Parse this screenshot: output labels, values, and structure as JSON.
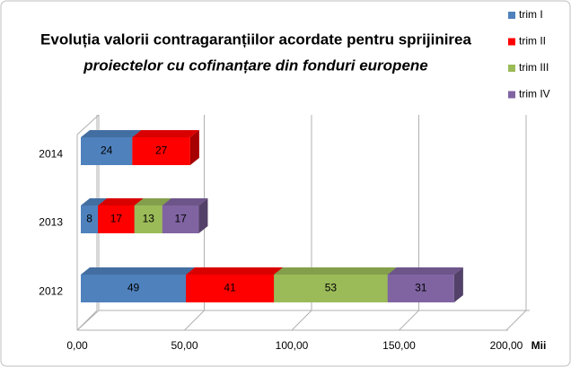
{
  "chart_data": {
    "type": "bar3d_stacked_horizontal",
    "title": "Evoluția valorii contragaranțiilor acordate pentru sprijinirea",
    "subtitle": "proiectelor cu cofinanțare din fonduri europene",
    "categories": [
      "2014",
      "2013",
      "2012"
    ],
    "series": [
      {
        "name": "trim I",
        "color": "#4f81bd",
        "values": [
          24,
          8,
          49
        ]
      },
      {
        "name": "trim II",
        "color": "#ff0000",
        "values": [
          27,
          17,
          41
        ]
      },
      {
        "name": "trim III",
        "color": "#9bbb59",
        "values": [
          null,
          13,
          53
        ]
      },
      {
        "name": "trim IV",
        "color": "#8064a2",
        "values": [
          null,
          17,
          31
        ]
      }
    ],
    "xlim": [
      0,
      200
    ],
    "xticks": [
      {
        "value": 0,
        "label": "0,00"
      },
      {
        "value": 50,
        "label": "50,00"
      },
      {
        "value": 100,
        "label": "100,00"
      },
      {
        "value": 150,
        "label": "150,00"
      },
      {
        "value": 200,
        "label": "200,00"
      }
    ],
    "xlabel": "Mii",
    "grid": true,
    "legend": "top-right"
  }
}
